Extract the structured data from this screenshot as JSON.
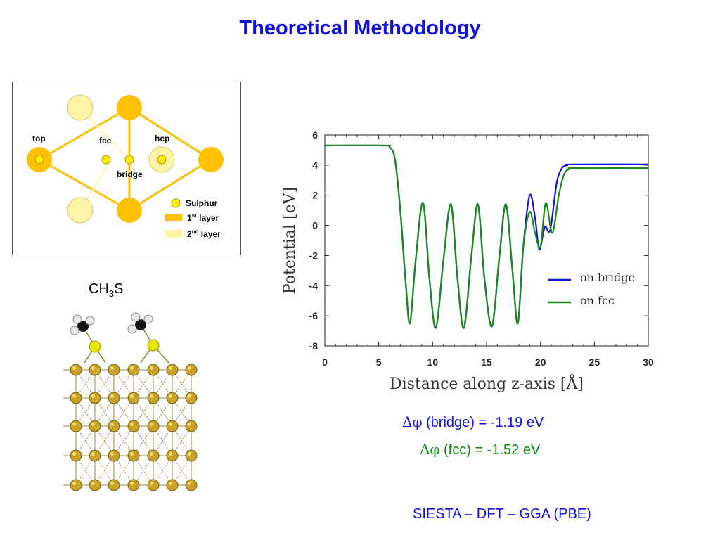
{
  "title": "Theoretical Methodology",
  "sites_diagram": {
    "labels": {
      "top": "top",
      "fcc": "fcc",
      "hcp": "hcp",
      "bridge": "bridge"
    },
    "legend": [
      {
        "key": "sulphur",
        "text": "Sulphur",
        "color": "#ffee00"
      },
      {
        "key": "layer1",
        "prefix": "1",
        "sup": "st",
        "suffix": " layer",
        "color": "#ffc000"
      },
      {
        "key": "layer2",
        "prefix": "2",
        "sup": "nd",
        "suffix": " layer",
        "color": "#fff4a6"
      }
    ],
    "colors": {
      "first_layer": "#ffc000",
      "second_layer": "#fff4a6",
      "sulphur": "#ffee00",
      "lines": "#ffc000"
    }
  },
  "molecule_label": {
    "main": "CH",
    "sub": "3",
    "tail": "S"
  },
  "chart_data": {
    "type": "line",
    "xlabel": "Distance along z-axis [Å]",
    "ylabel": "Potential [eV]",
    "xlim": [
      0,
      30
    ],
    "ylim": [
      -8,
      6
    ],
    "xticks": [
      0,
      5,
      10,
      15,
      20,
      25,
      30
    ],
    "yticks": [
      -8,
      -6,
      -4,
      -2,
      0,
      2,
      4,
      6
    ],
    "legend_position": "right-middle",
    "series": [
      {
        "name": "on bridge",
        "color": "#1010e0",
        "x": [
          0,
          5.5,
          6.0,
          6.5,
          7.0,
          7.5,
          7.9,
          8.4,
          9.1,
          9.7,
          10.3,
          11.0,
          11.7,
          12.3,
          12.9,
          13.6,
          14.2,
          14.8,
          15.5,
          16.2,
          16.8,
          17.4,
          17.9,
          18.4,
          19.0,
          19.5,
          19.9,
          20.4,
          20.9,
          21.5,
          22.0,
          22.5,
          23.0,
          30
        ],
        "y": [
          5.3,
          5.3,
          5.2,
          4.4,
          1.0,
          -3.8,
          -6.5,
          -2.5,
          1.5,
          -3.5,
          -6.8,
          -2.3,
          1.4,
          -3.5,
          -6.8,
          -2.0,
          1.4,
          -3.5,
          -6.7,
          -2.0,
          1.4,
          -3.0,
          -6.5,
          -1.5,
          2.0,
          0.5,
          -1.6,
          -0.1,
          -0.3,
          2.8,
          3.8,
          4.0,
          4.05,
          4.05
        ]
      },
      {
        "name": "on fcc",
        "color": "#1a8a1a",
        "x": [
          0,
          5.5,
          6.0,
          6.5,
          7.0,
          7.5,
          7.9,
          8.4,
          9.1,
          9.7,
          10.3,
          11.0,
          11.7,
          12.3,
          12.9,
          13.6,
          14.2,
          14.8,
          15.5,
          16.2,
          16.8,
          17.4,
          17.9,
          18.4,
          19.0,
          19.5,
          20.0,
          20.5,
          21.1,
          21.7,
          22.2,
          22.7,
          23.3,
          30
        ],
        "y": [
          5.3,
          5.3,
          5.2,
          4.4,
          1.0,
          -3.8,
          -6.5,
          -2.5,
          1.5,
          -3.5,
          -6.8,
          -2.3,
          1.4,
          -3.5,
          -6.8,
          -2.0,
          1.4,
          -3.5,
          -6.7,
          -2.0,
          1.4,
          -3.0,
          -6.5,
          -1.5,
          0.9,
          -0.5,
          -1.4,
          1.5,
          -0.5,
          2.0,
          3.4,
          3.75,
          3.8,
          3.8
        ]
      }
    ]
  },
  "equations": [
    {
      "symbol": "Δφ",
      "text": " (bridge) = -1.19 eV",
      "color": "#1010e0"
    },
    {
      "symbol": "Δφ",
      "text": " (fcc) = -1.52 eV",
      "color": "#108a10"
    }
  ],
  "method": "SIESTA – DFT – GGA (PBE)"
}
